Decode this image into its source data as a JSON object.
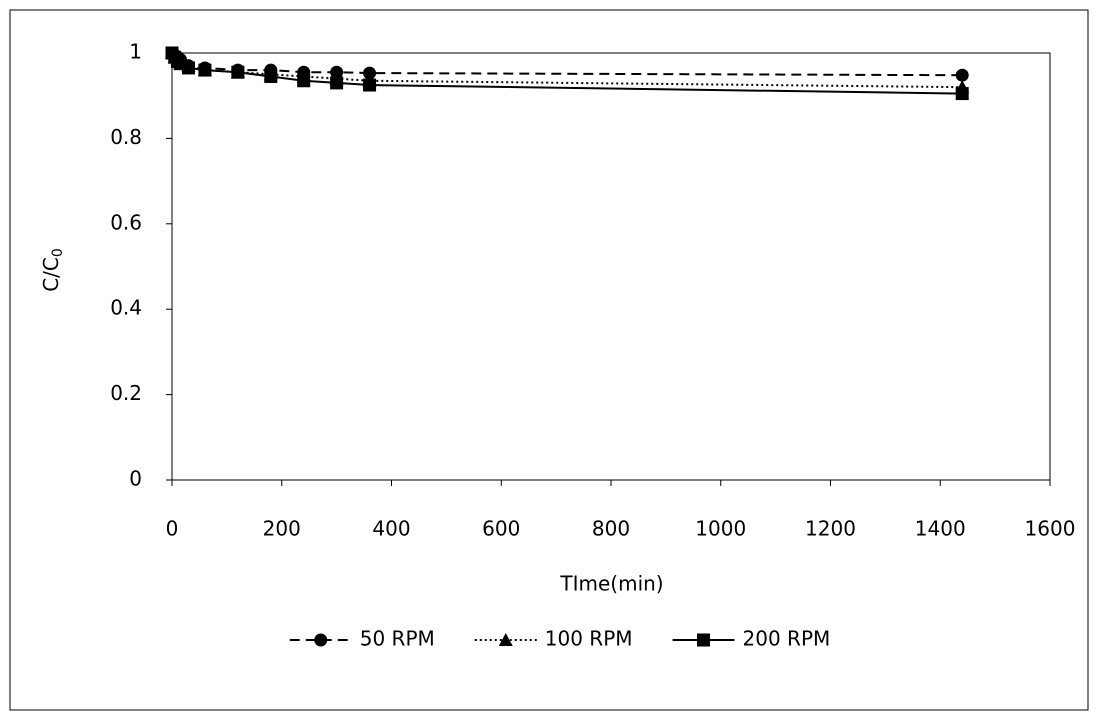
{
  "chart_data": {
    "type": "line",
    "ylabel": {
      "main": "C/C",
      "sub": "0"
    },
    "xlabel": "TIme(min)",
    "x": [
      0,
      5,
      10,
      15,
      30,
      60,
      120,
      180,
      240,
      300,
      360,
      1440
    ],
    "series": [
      {
        "name": "50 RPM",
        "color": "#000000",
        "line_style": "dashed",
        "marker": "circle",
        "values": [
          1,
          0.995,
          0.99,
          0.985,
          0.97,
          0.965,
          0.96,
          0.96,
          0.955,
          0.955,
          0.953,
          0.948
        ]
      },
      {
        "name": "100 RPM",
        "color": "#000000",
        "line_style": "dotted",
        "marker": "triangle",
        "values": [
          1,
          0.99,
          0.985,
          0.98,
          0.97,
          0.96,
          0.955,
          0.95,
          0.945,
          0.94,
          0.935,
          0.92
        ]
      },
      {
        "name": "200 RPM",
        "color": "#000000",
        "line_style": "solid",
        "marker": "square",
        "values": [
          1,
          0.99,
          0.98,
          0.975,
          0.965,
          0.96,
          0.955,
          0.945,
          0.935,
          0.93,
          0.925,
          0.905
        ]
      }
    ],
    "xlim": [
      0,
      1600
    ],
    "xticks": [
      0,
      200,
      400,
      600,
      800,
      1000,
      1200,
      1400,
      1600
    ],
    "ylim": [
      0,
      1
    ],
    "yticks": [
      0,
      0.2,
      0.4,
      0.6,
      0.8,
      1
    ],
    "grid": false,
    "legend": "bottom"
  }
}
